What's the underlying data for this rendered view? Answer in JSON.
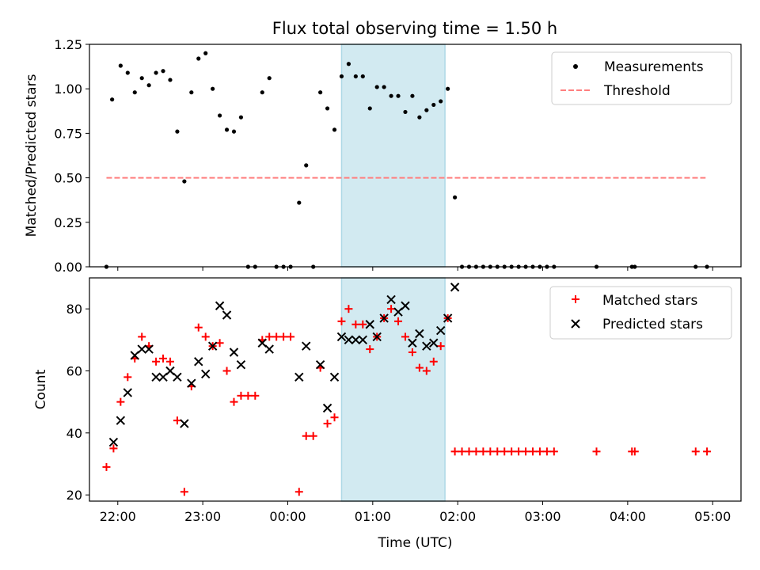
{
  "figure": {
    "title": "Flux total observing time = 1.50 h"
  },
  "colors": {
    "measurement": "#000000",
    "threshold": "#ff7f7f",
    "matched": "#ff0000",
    "predicted": "#000000",
    "span": "#add8e6"
  },
  "chart_data": [
    {
      "type": "scatter",
      "ylabel": "Matched/Predicted stars",
      "xlim": [
        "21:40",
        "05:20"
      ],
      "ylim": [
        0,
        1.25
      ],
      "yticks": [
        0.0,
        0.25,
        0.5,
        0.75,
        1.0,
        1.25
      ],
      "ytick_labels": [
        "0.00",
        "0.25",
        "0.50",
        "0.75",
        "1.00",
        "1.25"
      ],
      "span": {
        "start": "00:38",
        "end": "01:51"
      },
      "legend": {
        "position": "top-right",
        "entries": [
          "Measurements",
          "Threshold"
        ]
      },
      "threshold": {
        "name": "Threshold",
        "value": 0.5,
        "x_start": "21:52",
        "x_end": "04:55"
      },
      "series": [
        {
          "name": "Measurements",
          "points": [
            [
              "21:52",
              0.0
            ],
            [
              "21:56",
              0.94
            ],
            [
              "22:02",
              1.13
            ],
            [
              "22:07",
              1.09
            ],
            [
              "22:12",
              0.98
            ],
            [
              "22:17",
              1.06
            ],
            [
              "22:22",
              1.02
            ],
            [
              "22:27",
              1.09
            ],
            [
              "22:32",
              1.1
            ],
            [
              "22:37",
              1.05
            ],
            [
              "22:42",
              0.76
            ],
            [
              "22:47",
              0.48
            ],
            [
              "22:52",
              0.98
            ],
            [
              "22:57",
              1.17
            ],
            [
              "23:02",
              1.2
            ],
            [
              "23:07",
              1.0
            ],
            [
              "23:12",
              0.85
            ],
            [
              "23:17",
              0.77
            ],
            [
              "23:22",
              0.76
            ],
            [
              "23:27",
              0.84
            ],
            [
              "23:32",
              0.0
            ],
            [
              "23:37",
              0.0
            ],
            [
              "23:42",
              0.98
            ],
            [
              "23:47",
              1.06
            ],
            [
              "23:52",
              0.0
            ],
            [
              "23:57",
              0.0
            ],
            [
              "00:02",
              0.0
            ],
            [
              "00:08",
              0.36
            ],
            [
              "00:13",
              0.57
            ],
            [
              "00:18",
              0.0
            ],
            [
              "00:23",
              0.98
            ],
            [
              "00:28",
              0.89
            ],
            [
              "00:33",
              0.77
            ],
            [
              "00:38",
              1.07
            ],
            [
              "00:43",
              1.14
            ],
            [
              "00:48",
              1.07
            ],
            [
              "00:53",
              1.07
            ],
            [
              "00:58",
              0.89
            ],
            [
              "01:03",
              1.01
            ],
            [
              "01:08",
              1.01
            ],
            [
              "01:13",
              0.96
            ],
            [
              "01:18",
              0.96
            ],
            [
              "01:23",
              0.87
            ],
            [
              "01:28",
              0.96
            ],
            [
              "01:33",
              0.84
            ],
            [
              "01:38",
              0.88
            ],
            [
              "01:43",
              0.91
            ],
            [
              "01:48",
              0.93
            ],
            [
              "01:53",
              1.0
            ],
            [
              "01:58",
              0.39
            ],
            [
              "02:03",
              0.0
            ],
            [
              "02:08",
              0.0
            ],
            [
              "02:13",
              0.0
            ],
            [
              "02:18",
              0.0
            ],
            [
              "02:23",
              0.0
            ],
            [
              "02:28",
              0.0
            ],
            [
              "02:33",
              0.0
            ],
            [
              "02:38",
              0.0
            ],
            [
              "02:43",
              0.0
            ],
            [
              "02:48",
              0.0
            ],
            [
              "02:53",
              0.0
            ],
            [
              "02:58",
              0.0
            ],
            [
              "03:03",
              0.0
            ],
            [
              "03:08",
              0.0
            ],
            [
              "03:38",
              0.0
            ],
            [
              "04:03",
              0.0
            ],
            [
              "04:05",
              0.0
            ],
            [
              "04:48",
              0.0
            ],
            [
              "04:56",
              0.0
            ]
          ]
        }
      ]
    },
    {
      "type": "scatter",
      "xlabel": "Time (UTC)",
      "ylabel": "Count",
      "xlim": [
        "21:40",
        "05:20"
      ],
      "ylim": [
        18,
        90
      ],
      "xticks": [
        "22:00",
        "23:00",
        "00:00",
        "01:00",
        "02:00",
        "03:00",
        "04:00",
        "05:00"
      ],
      "yticks": [
        20,
        40,
        60,
        80
      ],
      "span": {
        "start": "00:38",
        "end": "01:51"
      },
      "legend": {
        "position": "top-right",
        "entries": [
          "Matched stars",
          "Predicted stars"
        ]
      },
      "series": [
        {
          "name": "Matched stars",
          "marker": "plus",
          "points": [
            [
              "21:52",
              29
            ],
            [
              "21:57",
              35
            ],
            [
              "22:02",
              50
            ],
            [
              "22:07",
              58
            ],
            [
              "22:12",
              64
            ],
            [
              "22:17",
              71
            ],
            [
              "22:22",
              68
            ],
            [
              "22:27",
              63
            ],
            [
              "22:32",
              64
            ],
            [
              "22:37",
              63
            ],
            [
              "22:42",
              44
            ],
            [
              "22:47",
              21
            ],
            [
              "22:52",
              55
            ],
            [
              "22:57",
              74
            ],
            [
              "23:02",
              71
            ],
            [
              "23:07",
              68
            ],
            [
              "23:12",
              69
            ],
            [
              "23:17",
              60
            ],
            [
              "23:22",
              50
            ],
            [
              "23:27",
              52
            ],
            [
              "23:32",
              52
            ],
            [
              "23:37",
              52
            ],
            [
              "23:42",
              70
            ],
            [
              "23:47",
              71
            ],
            [
              "23:52",
              71
            ],
            [
              "23:57",
              71
            ],
            [
              "00:02",
              71
            ],
            [
              "00:08",
              21
            ],
            [
              "00:13",
              39
            ],
            [
              "00:18",
              39
            ],
            [
              "00:23",
              61
            ],
            [
              "00:28",
              43
            ],
            [
              "00:33",
              45
            ],
            [
              "00:38",
              76
            ],
            [
              "00:43",
              80
            ],
            [
              "00:48",
              75
            ],
            [
              "00:53",
              75
            ],
            [
              "00:58",
              67
            ],
            [
              "01:03",
              71
            ],
            [
              "01:08",
              77
            ],
            [
              "01:13",
              80
            ],
            [
              "01:18",
              76
            ],
            [
              "01:23",
              71
            ],
            [
              "01:28",
              66
            ],
            [
              "01:33",
              61
            ],
            [
              "01:38",
              60
            ],
            [
              "01:43",
              63
            ],
            [
              "01:48",
              68
            ],
            [
              "01:53",
              77
            ],
            [
              "01:58",
              34
            ],
            [
              "02:03",
              34
            ],
            [
              "02:08",
              34
            ],
            [
              "02:13",
              34
            ],
            [
              "02:18",
              34
            ],
            [
              "02:23",
              34
            ],
            [
              "02:28",
              34
            ],
            [
              "02:33",
              34
            ],
            [
              "02:38",
              34
            ],
            [
              "02:43",
              34
            ],
            [
              "02:48",
              34
            ],
            [
              "02:53",
              34
            ],
            [
              "02:58",
              34
            ],
            [
              "03:03",
              34
            ],
            [
              "03:08",
              34
            ],
            [
              "03:38",
              34
            ],
            [
              "04:03",
              34
            ],
            [
              "04:05",
              34
            ],
            [
              "04:48",
              34
            ],
            [
              "04:56",
              34
            ]
          ]
        },
        {
          "name": "Predicted stars",
          "marker": "x",
          "points": [
            [
              "21:57",
              37
            ],
            [
              "22:02",
              44
            ],
            [
              "22:07",
              53
            ],
            [
              "22:12",
              65
            ],
            [
              "22:17",
              67
            ],
            [
              "22:22",
              67
            ],
            [
              "22:27",
              58
            ],
            [
              "22:32",
              58
            ],
            [
              "22:37",
              60
            ],
            [
              "22:42",
              58
            ],
            [
              "22:47",
              43
            ],
            [
              "22:52",
              56
            ],
            [
              "22:57",
              63
            ],
            [
              "23:02",
              59
            ],
            [
              "23:07",
              68
            ],
            [
              "23:12",
              81
            ],
            [
              "23:17",
              78
            ],
            [
              "23:22",
              66
            ],
            [
              "23:27",
              62
            ],
            [
              "23:42",
              69
            ],
            [
              "23:47",
              67
            ],
            [
              "00:08",
              58
            ],
            [
              "00:13",
              68
            ],
            [
              "00:23",
              62
            ],
            [
              "00:28",
              48
            ],
            [
              "00:33",
              58
            ],
            [
              "00:38",
              71
            ],
            [
              "00:43",
              70
            ],
            [
              "00:48",
              70
            ],
            [
              "00:53",
              70
            ],
            [
              "00:58",
              75
            ],
            [
              "01:03",
              71
            ],
            [
              "01:08",
              77
            ],
            [
              "01:13",
              83
            ],
            [
              "01:18",
              79
            ],
            [
              "01:23",
              81
            ],
            [
              "01:28",
              69
            ],
            [
              "01:33",
              72
            ],
            [
              "01:38",
              68
            ],
            [
              "01:43",
              69
            ],
            [
              "01:48",
              73
            ],
            [
              "01:53",
              77
            ],
            [
              "01:58",
              87
            ]
          ]
        }
      ]
    }
  ]
}
